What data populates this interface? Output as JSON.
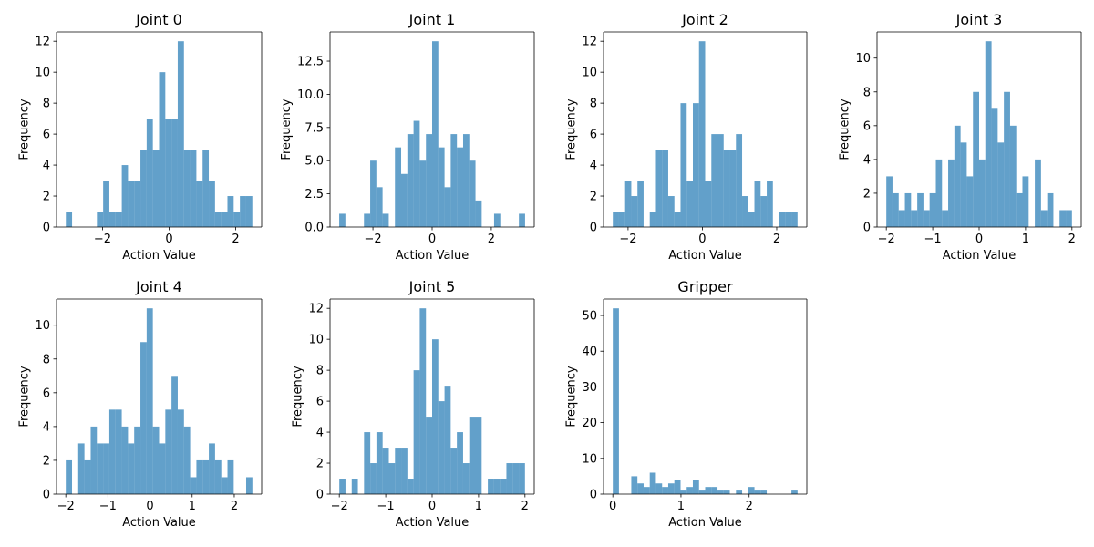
{
  "chart_data": [
    {
      "type": "histogram",
      "title": "Joint 0",
      "x_label": "Action Value",
      "y_label": "Frequency",
      "color": "#1f77b4",
      "alpha": 0.7,
      "bins": [
        -3.1,
        -2.913,
        -2.727,
        -2.54,
        -2.353,
        -2.167,
        -1.98,
        -1.793,
        -1.607,
        -1.42,
        -1.233,
        -1.047,
        -0.86,
        -0.673,
        -0.487,
        -0.3,
        -0.113,
        0.073,
        0.26,
        0.447,
        0.633,
        0.82,
        1.007,
        1.193,
        1.38,
        1.567,
        1.753,
        1.94,
        2.127,
        2.313,
        2.5
      ],
      "values": [
        1,
        0,
        0,
        0,
        0,
        1,
        3,
        1,
        1,
        4,
        3,
        3,
        5,
        7,
        5,
        10,
        7,
        7,
        12,
        5,
        5,
        3,
        5,
        3,
        1,
        1,
        2,
        1,
        2,
        2
      ],
      "xlim": [
        -3.38,
        2.78
      ],
      "xticks": [
        {
          "value": -2,
          "label": "−2"
        },
        0,
        2
      ],
      "ylim": [
        0,
        12.6
      ],
      "yticks": [
        0,
        2,
        4,
        6,
        8,
        10,
        12
      ]
    },
    {
      "type": "histogram",
      "title": "Joint 1",
      "x_label": "Action Value",
      "y_label": "Frequency",
      "color": "#1f77b4",
      "alpha": 0.7,
      "bins": [
        -3.14,
        -2.931,
        -2.721,
        -2.512,
        -2.303,
        -2.093,
        -1.884,
        -1.675,
        -1.465,
        -1.256,
        -1.047,
        -0.837,
        -0.628,
        -0.419,
        -0.209,
        0,
        0.209,
        0.419,
        0.628,
        0.837,
        1.047,
        1.256,
        1.465,
        1.675,
        1.884,
        2.093,
        2.303,
        2.512,
        2.721,
        2.931,
        3.14
      ],
      "values": [
        1,
        0,
        0,
        0,
        1,
        5,
        3,
        1,
        0,
        6,
        4,
        7,
        8,
        5,
        7,
        14,
        6,
        3,
        7,
        6,
        7,
        5,
        2,
        0,
        0,
        1,
        0,
        0,
        0,
        1
      ],
      "xlim": [
        -3.45,
        3.45
      ],
      "xticks": [
        {
          "value": -2,
          "label": "−2"
        },
        0,
        2
      ],
      "ylim": [
        0,
        14.7
      ],
      "yticks": [
        {
          "value": 0,
          "label": "0.0"
        },
        2.5,
        {
          "value": 5,
          "label": "5.0"
        },
        7.5,
        {
          "value": 10,
          "label": "10.0"
        },
        12.5
      ]
    },
    {
      "type": "histogram",
      "title": "Joint 2",
      "x_label": "Action Value",
      "y_label": "Frequency",
      "color": "#1f77b4",
      "alpha": 0.7,
      "bins": [
        -2.41,
        -2.244,
        -2.079,
        -1.913,
        -1.747,
        -1.582,
        -1.416,
        -1.25,
        -1.085,
        -0.919,
        -0.753,
        -0.588,
        -0.422,
        -0.256,
        -0.091,
        0.075,
        0.241,
        0.406,
        0.572,
        0.738,
        0.903,
        1.069,
        1.235,
        1.4,
        1.566,
        1.732,
        1.897,
        2.063,
        2.229,
        2.394,
        2.56
      ],
      "values": [
        1,
        1,
        3,
        2,
        3,
        0,
        1,
        5,
        5,
        2,
        1,
        8,
        3,
        8,
        12,
        3,
        6,
        6,
        5,
        5,
        6,
        2,
        1,
        3,
        2,
        3,
        0,
        1,
        1,
        1
      ],
      "xlim": [
        -2.66,
        2.81
      ],
      "xticks": [
        {
          "value": -2,
          "label": "−2"
        },
        0,
        2
      ],
      "ylim": [
        0,
        12.6
      ],
      "yticks": [
        0,
        2,
        4,
        6,
        8,
        10,
        12
      ]
    },
    {
      "type": "histogram",
      "title": "Joint 3",
      "x_label": "Action Value",
      "y_label": "Frequency",
      "color": "#1f77b4",
      "alpha": 0.7,
      "bins": [
        -2,
        -1.867,
        -1.733,
        -1.6,
        -1.467,
        -1.333,
        -1.2,
        -1.067,
        -0.933,
        -0.8,
        -0.667,
        -0.533,
        -0.4,
        -0.267,
        -0.133,
        0,
        0.133,
        0.267,
        0.4,
        0.533,
        0.667,
        0.8,
        0.933,
        1.067,
        1.2,
        1.333,
        1.467,
        1.6,
        1.733,
        1.867,
        2
      ],
      "values": [
        3,
        2,
        1,
        2,
        1,
        2,
        1,
        2,
        4,
        1,
        4,
        6,
        5,
        3,
        8,
        4,
        11,
        7,
        5,
        8,
        6,
        2,
        3,
        0,
        4,
        1,
        2,
        0,
        1,
        1
      ],
      "xlim": [
        -2.2,
        2.2
      ],
      "xticks": [
        {
          "value": -2,
          "label": "−2"
        },
        {
          "value": -1,
          "label": "−1"
        },
        0,
        1,
        2
      ],
      "ylim": [
        0,
        11.55
      ],
      "yticks": [
        0,
        2,
        4,
        6,
        8,
        10
      ]
    },
    {
      "type": "histogram",
      "title": "Joint 4",
      "x_label": "Action Value",
      "y_label": "Frequency",
      "color": "#1f77b4",
      "alpha": 0.7,
      "bins": [
        -2,
        -1.852,
        -1.705,
        -1.557,
        -1.409,
        -1.262,
        -1.114,
        -0.966,
        -0.819,
        -0.671,
        -0.523,
        -0.376,
        -0.228,
        -0.08,
        0.067,
        0.215,
        0.363,
        0.51,
        0.658,
        0.806,
        0.953,
        1.101,
        1.249,
        1.396,
        1.544,
        1.692,
        1.839,
        1.987,
        2.135,
        2.282,
        2.43
      ],
      "values": [
        2,
        0,
        3,
        2,
        4,
        3,
        3,
        5,
        5,
        4,
        3,
        4,
        9,
        11,
        4,
        3,
        5,
        7,
        5,
        4,
        1,
        2,
        2,
        3,
        2,
        1,
        2,
        0,
        0,
        1
      ],
      "xlim": [
        -2.22,
        2.65
      ],
      "xticks": [
        {
          "value": -2,
          "label": "−2"
        },
        {
          "value": -1,
          "label": "−1"
        },
        0,
        1,
        2
      ],
      "ylim": [
        0,
        11.55
      ],
      "yticks": [
        0,
        2,
        4,
        6,
        8,
        10
      ]
    },
    {
      "type": "histogram",
      "title": "Joint 5",
      "x_label": "Action Value",
      "y_label": "Frequency",
      "color": "#1f77b4",
      "alpha": 0.7,
      "bins": [
        -2,
        -1.867,
        -1.733,
        -1.6,
        -1.467,
        -1.333,
        -1.2,
        -1.067,
        -0.933,
        -0.8,
        -0.667,
        -0.533,
        -0.4,
        -0.267,
        -0.133,
        0,
        0.133,
        0.267,
        0.4,
        0.533,
        0.667,
        0.8,
        0.933,
        1.067,
        1.2,
        1.333,
        1.467,
        1.6,
        1.733,
        1.867,
        2
      ],
      "values": [
        1,
        0,
        1,
        0,
        4,
        2,
        4,
        3,
        2,
        3,
        3,
        1,
        8,
        12,
        5,
        10,
        6,
        7,
        3,
        4,
        2,
        5,
        5,
        0,
        1,
        1,
        1,
        2,
        2,
        2
      ],
      "xlim": [
        -2.2,
        2.2
      ],
      "xticks": [
        {
          "value": -2,
          "label": "−2"
        },
        {
          "value": -1,
          "label": "−1"
        },
        0,
        1,
        2
      ],
      "ylim": [
        0,
        12.6
      ],
      "yticks": [
        0,
        2,
        4,
        6,
        8,
        10,
        12
      ]
    },
    {
      "type": "histogram",
      "title": "Gripper",
      "x_label": "Action Value",
      "y_label": "Frequency",
      "color": "#1f77b4",
      "alpha": 0.7,
      "bins": [
        0,
        0.09,
        0.181,
        0.271,
        0.361,
        0.452,
        0.542,
        0.632,
        0.723,
        0.813,
        0.903,
        0.994,
        1.084,
        1.174,
        1.265,
        1.355,
        1.445,
        1.536,
        1.626,
        1.716,
        1.807,
        1.897,
        1.987,
        2.078,
        2.168,
        2.258,
        2.349,
        2.439,
        2.529,
        2.62,
        2.71
      ],
      "values": [
        52,
        0,
        0,
        5,
        3,
        2,
        6,
        3,
        2,
        3,
        4,
        1,
        2,
        4,
        1,
        2,
        2,
        1,
        1,
        0,
        1,
        0,
        2,
        1,
        1,
        0,
        0,
        0,
        0,
        1
      ],
      "xlim": [
        -0.136,
        2.846
      ],
      "xticks": [
        0,
        1,
        2
      ],
      "ylim": [
        0,
        54.6
      ],
      "yticks": [
        0,
        10,
        20,
        30,
        40,
        50
      ]
    }
  ]
}
